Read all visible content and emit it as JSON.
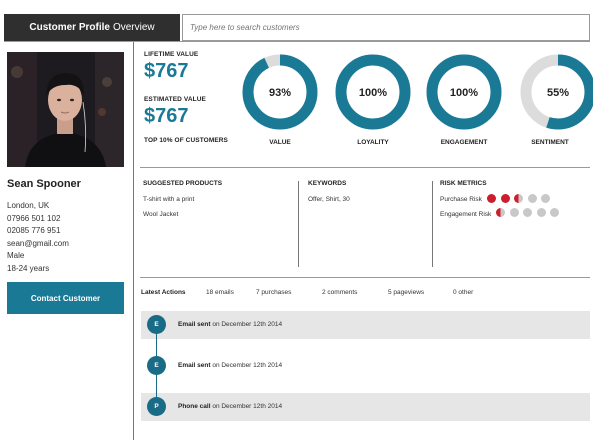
{
  "header": {
    "title_bold": "Customer Profile",
    "title_light": "Overview",
    "search_placeholder": "Type here to search customers"
  },
  "profile": {
    "name": "Sean Spooner",
    "location": "London, UK",
    "phone1": "07966 501 102",
    "phone2": "02085 776 951",
    "email": "sean@gmail.com",
    "gender": "Male",
    "age": "18-24 years",
    "contact_label": "Contact Customer"
  },
  "values": {
    "lifetime_label": "LIFETIME VALUE",
    "lifetime_value": "$767",
    "estimated_label": "ESTIMATED VALUE",
    "estimated_value": "$767",
    "top_label": "TOP 10% OF CUSTOMERS"
  },
  "metrics": [
    {
      "label": "VALUE",
      "percent_text": "93%",
      "percent": 93
    },
    {
      "label": "LOYALITY",
      "percent_text": "100%",
      "percent": 100
    },
    {
      "label": "ENGAGEMENT",
      "percent_text": "100%",
      "percent": 100
    },
    {
      "label": "SENTIMENT",
      "percent_text": "55%",
      "percent": 55
    }
  ],
  "suggested": {
    "title": "SUGGESTED PRODUCTS",
    "items": [
      "T-shirt with a print",
      "Wool Jacket"
    ]
  },
  "keywords": {
    "title": "KEYWORDS",
    "text": "Offer, Shirt, 30"
  },
  "risk": {
    "title": "RISK METRICS",
    "purchase_label": "Purchase Risk",
    "purchase_level": 2.5,
    "engagement_label": "Engagement Risk",
    "engagement_level": 0.5,
    "max_level": 5
  },
  "actions": {
    "title": "Latest Actions",
    "stats": [
      "18 emails",
      "7 purchases",
      "2 comments",
      "5 pageviews",
      "0 other"
    ],
    "items": [
      {
        "badge": "E",
        "title": "Email sent",
        "date": "on December 12th 2014"
      },
      {
        "badge": "E",
        "title": "Email sent",
        "date": "on December 12th 2014"
      },
      {
        "badge": "P",
        "title": "Phone call",
        "date": "on December 12th 2014"
      }
    ]
  },
  "colors": {
    "accent": "#1a7a96",
    "ring_track": "#dcdcdc",
    "risk_red": "#cc1e2c",
    "risk_grey": "#c8c8c8",
    "header_bg": "#2f2f2f"
  }
}
